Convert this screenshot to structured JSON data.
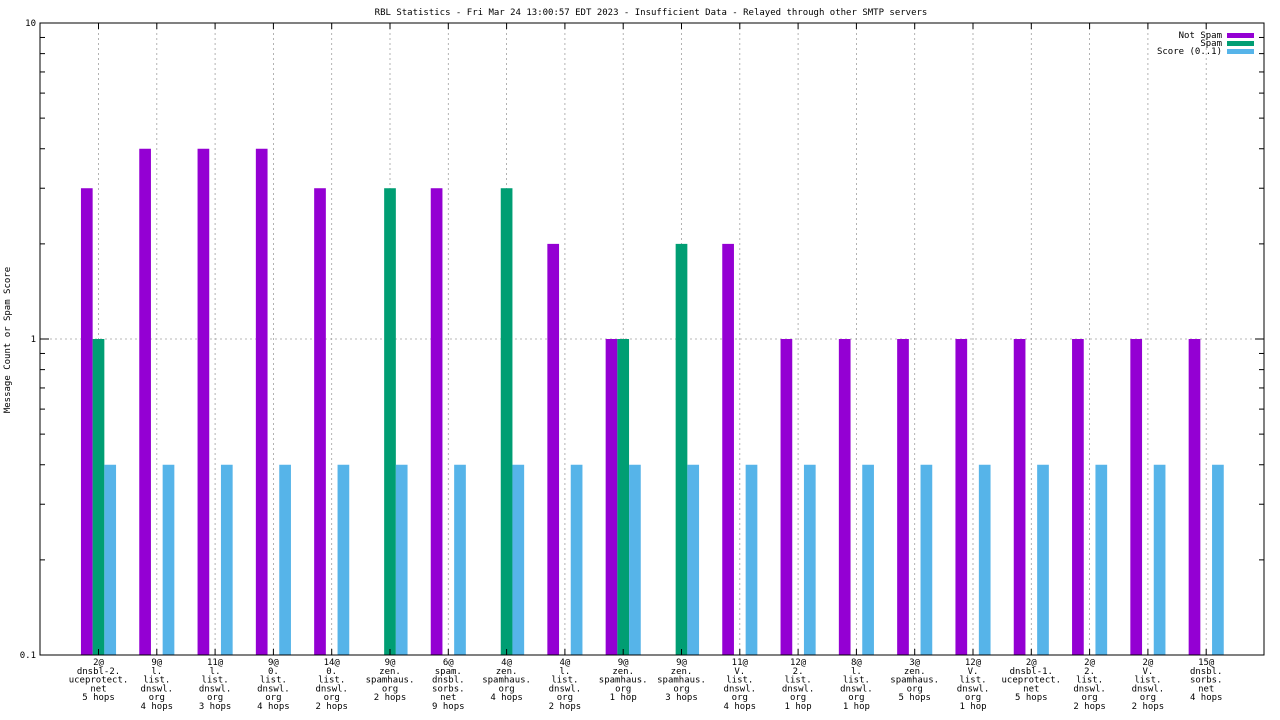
{
  "chart_data": {
    "type": "bar",
    "title": "RBL Statistics - Fri Mar 24 13:00:57 EDT 2023 - Insufficient Data - Relayed through other SMTP servers",
    "xlabel": "",
    "ylabel": "Message Count or Spam Score",
    "yscale": "log",
    "ylim": [
      0.1,
      10
    ],
    "y_tick_labels": [
      "0.1",
      "1",
      "10"
    ],
    "grid": true,
    "legend_position": "top-right",
    "categories": [
      [
        "2@",
        "dnsbl-2.",
        "uceprotect.",
        "net",
        "5 hops"
      ],
      [
        "9@",
        "l.",
        "list.",
        "dnswl.",
        "org",
        "4 hops"
      ],
      [
        "11@",
        "l.",
        "list.",
        "dnswl.",
        "org",
        "3 hops"
      ],
      [
        "9@",
        "0.",
        "list.",
        "dnswl.",
        "org",
        "4 hops"
      ],
      [
        "14@",
        "0.",
        "list.",
        "dnswl.",
        "org",
        "2 hops"
      ],
      [
        "9@",
        "zen.",
        "spamhaus.",
        "org",
        "2 hops"
      ],
      [
        "6@",
        "spam.",
        "dnsbl.",
        "sorbs.",
        "net",
        "9 hops"
      ],
      [
        "4@",
        "zen.",
        "spamhaus.",
        "org",
        "4 hops"
      ],
      [
        "4@",
        "l.",
        "list.",
        "dnswl.",
        "org",
        "2 hops"
      ],
      [
        "9@",
        "zen.",
        "spamhaus.",
        "org",
        "1 hop"
      ],
      [
        "9@",
        "zen.",
        "spamhaus.",
        "org",
        "3 hops"
      ],
      [
        "11@",
        "V.",
        "list.",
        "dnswl.",
        "org",
        "4 hops"
      ],
      [
        "12@",
        "2.",
        "list.",
        "dnswl.",
        "org",
        "1 hop"
      ],
      [
        "8@",
        "l.",
        "list.",
        "dnswl.",
        "org",
        "1 hop"
      ],
      [
        "3@",
        "zen.",
        "spamhaus.",
        "org",
        "5 hops"
      ],
      [
        "12@",
        "V.",
        "list.",
        "dnswl.",
        "org",
        "1 hop"
      ],
      [
        "2@",
        "dnsbl-1.",
        "uceprotect.",
        "net",
        "5 hops"
      ],
      [
        "2@",
        "2.",
        "list.",
        "dnswl.",
        "org",
        "2 hops"
      ],
      [
        "2@",
        "V.",
        "list.",
        "dnswl.",
        "org",
        "2 hops"
      ],
      [
        "15@",
        "dnsbl.",
        "sorbs.",
        "net",
        "4 hops"
      ]
    ],
    "series": [
      {
        "name": "Not Spam",
        "color": "#9400d3",
        "values": [
          3,
          4,
          4,
          4,
          3,
          null,
          3,
          null,
          2,
          1,
          null,
          2,
          1,
          1,
          1,
          1,
          1,
          1,
          1,
          1
        ]
      },
      {
        "name": "Spam",
        "color": "#009e73",
        "values": [
          1,
          null,
          null,
          null,
          null,
          3,
          null,
          3,
          null,
          1,
          2,
          null,
          null,
          null,
          null,
          null,
          null,
          null,
          null,
          null
        ]
      },
      {
        "name": "Score (0..1)",
        "color": "#56b4e9",
        "values": [
          0.4,
          0.4,
          0.4,
          0.4,
          0.4,
          0.4,
          0.4,
          0.4,
          0.4,
          0.4,
          0.4,
          0.4,
          0.4,
          0.4,
          0.4,
          0.4,
          0.4,
          0.4,
          0.4,
          0.4
        ]
      }
    ]
  }
}
